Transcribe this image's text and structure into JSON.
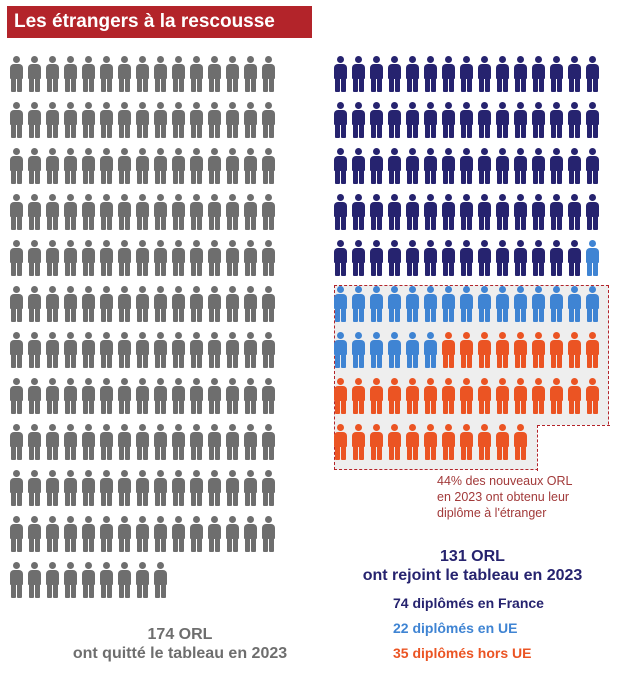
{
  "title": "Les étrangers à la rescousse",
  "chart_data": {
    "type": "pictogram",
    "left": {
      "count": 174,
      "color": "#6e6e6e",
      "label_lines": [
        "174 ORL",
        "ont quitté le tableau en 2023"
      ]
    },
    "right": {
      "total": 131,
      "label_lines": [
        "131 ORL",
        "ont rejoint le tableau en 2023"
      ],
      "series": [
        {
          "name": "diplômés en France",
          "value": 74,
          "color": "#26236f",
          "label": "74 diplômés en France"
        },
        {
          "name": "diplômés en UE",
          "value": 22,
          "color": "#3f84d3",
          "label": "22 diplômés en UE"
        },
        {
          "name": "diplômés hors UE",
          "value": 35,
          "color": "#eb5423",
          "label": "35 diplômés hors UE"
        }
      ]
    },
    "annotation_lines": [
      "44% des nouveaux ORL",
      "en 2023 ont obtenu leur",
      "diplôme à l'étranger"
    ]
  }
}
